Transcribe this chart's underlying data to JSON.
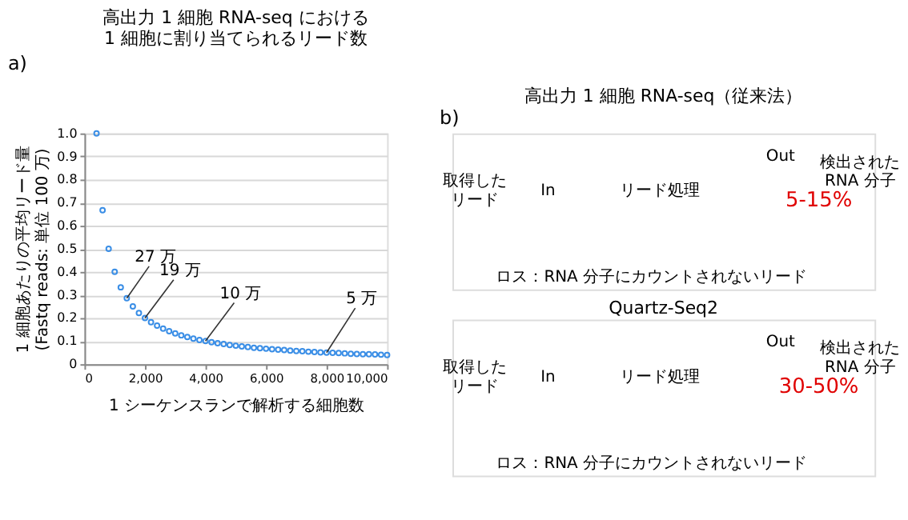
{
  "chart_data": [
    {
      "type": "scatter",
      "title": "高出力 1 細胞 RNA-seq における\n1 細胞に割り当てられるリード数",
      "xlabel": "1 シーケンスランで解析する細胞数",
      "ylabel": "1 細胞あたりの平均リード量\n(Fastq reads: 単位 100 万)",
      "x": [
        400,
        600,
        800,
        1000,
        1200,
        1400,
        1600,
        1800,
        2000,
        2200,
        2400,
        2600,
        2800,
        3000,
        3200,
        3400,
        3600,
        3800,
        4000,
        4200,
        4400,
        4600,
        4800,
        5000,
        5200,
        5400,
        5600,
        5800,
        6000,
        6200,
        6400,
        6600,
        6800,
        7000,
        7200,
        7400,
        7600,
        7800,
        8000,
        8200,
        8400,
        8600,
        8800,
        9000,
        9200,
        9400,
        9600,
        9800,
        10000
      ],
      "series": [
        {
          "color": "#3a8ee6",
          "values": [
            1.0,
            0.667,
            0.5,
            0.4,
            0.333,
            0.286,
            0.25,
            0.222,
            0.2,
            0.182,
            0.167,
            0.154,
            0.143,
            0.133,
            0.125,
            0.118,
            0.111,
            0.105,
            0.1,
            0.095,
            0.091,
            0.087,
            0.083,
            0.08,
            0.077,
            0.074,
            0.071,
            0.069,
            0.067,
            0.065,
            0.063,
            0.061,
            0.059,
            0.057,
            0.056,
            0.054,
            0.053,
            0.051,
            0.05,
            0.049,
            0.048,
            0.047,
            0.045,
            0.044,
            0.043,
            0.043,
            0.042,
            0.041,
            0.04
          ]
        }
      ],
      "marker": "circle",
      "grid": "y",
      "xlim": [
        0,
        10000
      ],
      "ylim": [
        0,
        1.0
      ],
      "xticks": [
        0,
        {
          "value": 2000,
          "label": "2,000"
        },
        {
          "value": 4000,
          "label": "4,000"
        },
        {
          "value": 6000,
          "label": "6,000"
        },
        {
          "value": 8000,
          "label": "8,000"
        },
        {
          "value": 10000,
          "label": "10,000"
        }
      ],
      "yticks": [
        0,
        {
          "value": 0.1,
          "label": "0.1"
        },
        {
          "value": 0.2,
          "label": "0.2"
        },
        {
          "value": 0.3,
          "label": "0.3"
        },
        {
          "value": 0.4,
          "label": "0.4"
        },
        {
          "value": 0.5,
          "label": "0.5"
        },
        {
          "value": 0.6,
          "label": "0.6"
        },
        {
          "value": 0.7,
          "label": "0.7"
        },
        {
          "value": 0.8,
          "label": "0.8"
        },
        {
          "value": 0.9,
          "label": "0.9"
        },
        {
          "value": 1.0,
          "label": "1.0"
        }
      ],
      "annotations": [
        "a)",
        {
          "text": "27 万",
          "x": 1400,
          "y": 0.286
        },
        {
          "text": "19 万",
          "x": 2000,
          "y": 0.2
        },
        {
          "text": "10 万",
          "x": 4000,
          "y": 0.1
        },
        {
          "text": "5 万",
          "x": 8000,
          "y": 0.05
        }
      ]
    },
    {
      "type": "other",
      "title": "高出力 1 細胞 RNA-seq（従来法）",
      "annotations": [
        "b)",
        "取得したリード",
        "In",
        "リード処理",
        "Out",
        "検出された\nRNA 分子",
        "5-15%",
        "ロス：RNA 分子にカウントされないリード"
      ]
    },
    {
      "type": "other",
      "title": "Quartz-Seq2",
      "annotations": [
        "取得したリード",
        "In",
        "リード処理",
        "Out",
        "検出された\nRNA 分子",
        "30-50%",
        "ロス：RNA 分子にカウントされないリード"
      ]
    }
  ]
}
